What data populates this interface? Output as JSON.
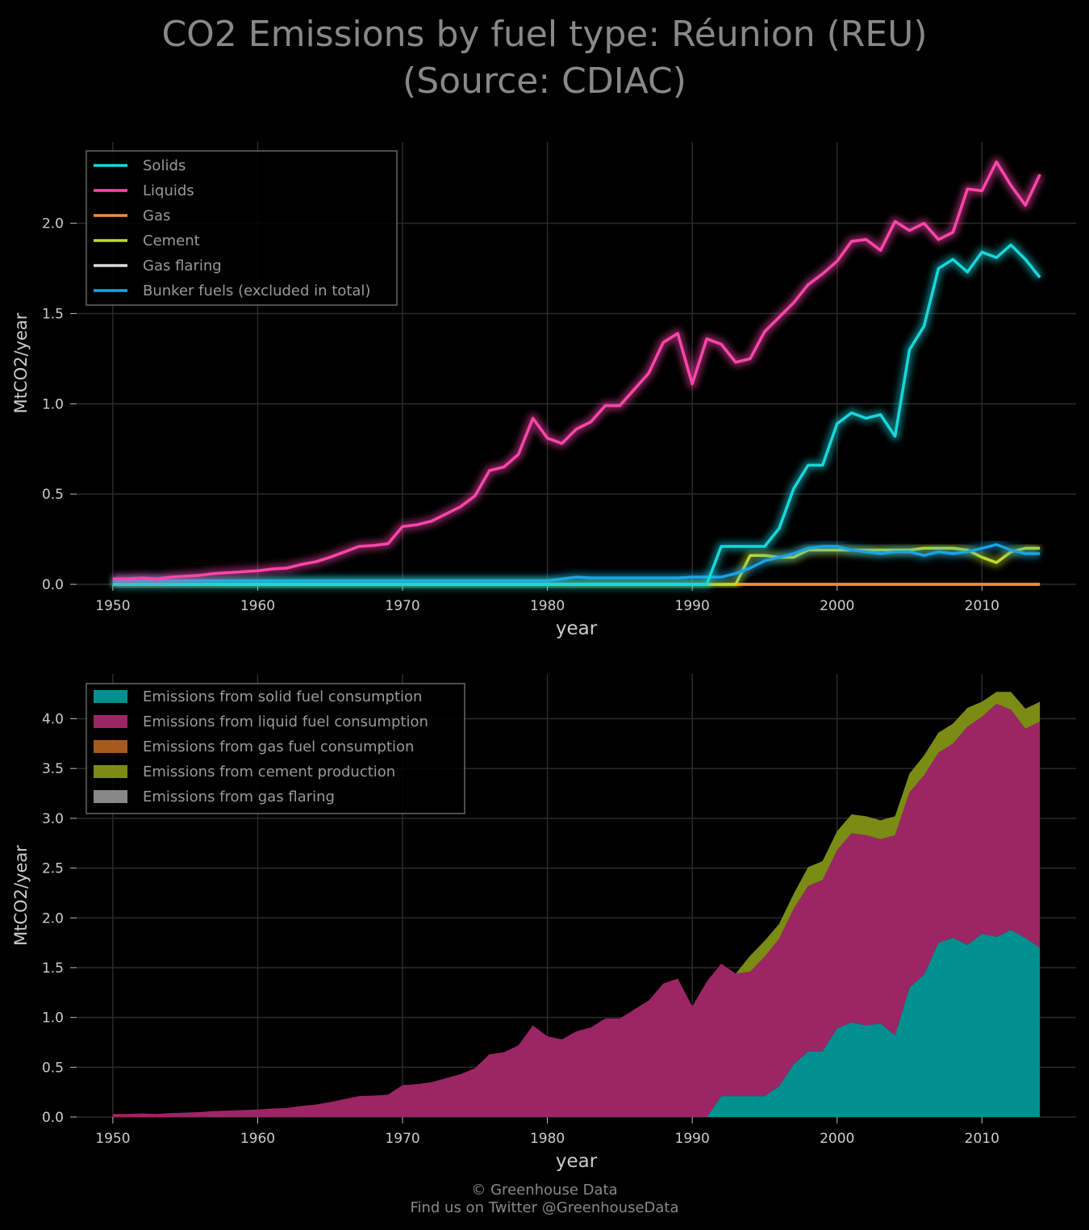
{
  "title_line1": "CO2 Emissions by fuel type: Réunion (REU)",
  "title_line2": "(Source: CDIAC)",
  "footer_line1": "© Greenhouse Data",
  "footer_line2": "Find us on Twitter @GreenhouseData",
  "colors": {
    "background": "#000000",
    "grid": "#2a2a2a",
    "text": "#cccccc",
    "solids": "#17d8dd",
    "liquids": "#ff44aa",
    "gas": "#f08a3c",
    "cement": "#c2d92a",
    "gas_flaring": "#dddddd",
    "bunker": "#1aa3e6",
    "area_solid": "#00908f",
    "area_liquid": "#9c2565",
    "area_gas": "#a85a1c",
    "area_cement": "#7a8c13",
    "area_flaring": "#888888"
  },
  "chart_data": [
    {
      "type": "line",
      "xlabel": "year",
      "ylabel": "MtCO2/year",
      "xlim": [
        1947.5,
        2016.5
      ],
      "ylim": [
        0,
        2.45
      ],
      "xticks": [
        1950,
        1960,
        1970,
        1980,
        1990,
        2000,
        2010
      ],
      "yticks": [
        0.0,
        0.5,
        1.0,
        1.5,
        2.0
      ],
      "ytick_labels": [
        "0.0",
        "0.5",
        "1.0",
        "1.5",
        "2.0"
      ],
      "grid": true,
      "legend_position": "top-left",
      "x": [
        1950,
        1951,
        1952,
        1953,
        1954,
        1955,
        1956,
        1957,
        1958,
        1959,
        1960,
        1961,
        1962,
        1963,
        1964,
        1965,
        1966,
        1967,
        1968,
        1969,
        1970,
        1971,
        1972,
        1973,
        1974,
        1975,
        1976,
        1977,
        1978,
        1979,
        1980,
        1981,
        1982,
        1983,
        1984,
        1985,
        1986,
        1987,
        1988,
        1989,
        1990,
        1991,
        1992,
        1993,
        1994,
        1995,
        1996,
        1997,
        1998,
        1999,
        2000,
        2001,
        2002,
        2003,
        2004,
        2005,
        2006,
        2007,
        2008,
        2009,
        2010,
        2011,
        2012,
        2013,
        2014
      ],
      "series": [
        {
          "name": "Solids",
          "color_key": "solids",
          "values": [
            0,
            0,
            0,
            0,
            0,
            0,
            0,
            0,
            0,
            0,
            0,
            0,
            0,
            0,
            0,
            0,
            0,
            0,
            0,
            0,
            0,
            0,
            0,
            0,
            0,
            0,
            0,
            0,
            0,
            0,
            0,
            0,
            0,
            0,
            0,
            0,
            0,
            0,
            0,
            0,
            0,
            0,
            0.21,
            0.21,
            0.21,
            0.21,
            0.31,
            0.53,
            0.66,
            0.66,
            0.89,
            0.95,
            0.92,
            0.94,
            0.82,
            1.3,
            1.43,
            1.75,
            1.8,
            1.73,
            1.84,
            1.81,
            1.88,
            1.8,
            1.7
          ]
        },
        {
          "name": "Liquids",
          "color_key": "liquids",
          "values": [
            0.03,
            0.03,
            0.035,
            0.03,
            0.04,
            0.045,
            0.05,
            0.06,
            0.065,
            0.07,
            0.075,
            0.085,
            0.09,
            0.11,
            0.125,
            0.15,
            0.18,
            0.21,
            0.215,
            0.225,
            0.32,
            0.33,
            0.35,
            0.39,
            0.43,
            0.49,
            0.63,
            0.65,
            0.72,
            0.92,
            0.81,
            0.78,
            0.86,
            0.9,
            0.99,
            0.99,
            1.08,
            1.17,
            1.34,
            1.39,
            1.11,
            1.36,
            1.33,
            1.23,
            1.25,
            1.4,
            1.48,
            1.56,
            1.66,
            1.72,
            1.79,
            1.9,
            1.91,
            1.85,
            2.01,
            1.96,
            2.0,
            1.91,
            1.95,
            2.19,
            2.18,
            2.34,
            2.21,
            2.1,
            2.27
          ]
        },
        {
          "name": "Gas",
          "color_key": "gas",
          "values": [
            0,
            0,
            0,
            0,
            0,
            0,
            0,
            0,
            0,
            0,
            0,
            0,
            0,
            0,
            0,
            0,
            0,
            0,
            0,
            0,
            0,
            0,
            0,
            0,
            0,
            0,
            0,
            0,
            0,
            0,
            0,
            0,
            0,
            0,
            0,
            0,
            0,
            0,
            0,
            0,
            0,
            0,
            0,
            0,
            0,
            0,
            0,
            0,
            0,
            0,
            0,
            0,
            0,
            0,
            0,
            0,
            0,
            0,
            0,
            0,
            0,
            0,
            0,
            0,
            0
          ]
        },
        {
          "name": "Cement",
          "color_key": "cement",
          "values": [
            0,
            0,
            0,
            0,
            0,
            0,
            0,
            0,
            0,
            0,
            0,
            0,
            0,
            0,
            0,
            0,
            0,
            0,
            0,
            0,
            0,
            0,
            0,
            0,
            0,
            0,
            0,
            0,
            0,
            0,
            0,
            0,
            0,
            0,
            0,
            0,
            0,
            0,
            0,
            0,
            0,
            0,
            0,
            0,
            0.16,
            0.16,
            0.15,
            0.15,
            0.19,
            0.19,
            0.19,
            0.19,
            0.19,
            0.19,
            0.19,
            0.19,
            0.2,
            0.2,
            0.2,
            0.19,
            0.15,
            0.12,
            0.18,
            0.2,
            0.2
          ]
        },
        {
          "name": "Gas flaring",
          "color_key": "gas_flaring",
          "values": [
            0,
            0,
            0,
            0,
            0,
            0,
            0,
            0,
            0,
            0,
            0,
            0,
            0,
            0,
            0,
            0,
            0,
            0,
            0,
            0,
            0,
            0,
            0,
            0,
            0,
            0,
            0,
            0,
            0,
            0,
            0,
            0,
            0,
            0,
            0,
            0,
            0,
            0,
            0,
            0,
            0,
            0,
            0,
            0,
            0,
            0,
            0,
            0,
            0,
            0,
            0,
            0,
            0,
            0,
            0,
            0,
            0,
            0,
            0,
            0,
            0,
            0,
            0,
            0,
            0
          ]
        },
        {
          "name": "Bunker fuels (excluded in total)",
          "color_key": "bunker",
          "values": [
            0.02,
            0.02,
            0.02,
            0.02,
            0.02,
            0.02,
            0.02,
            0.02,
            0.02,
            0.02,
            0.02,
            0.02,
            0.02,
            0.02,
            0.02,
            0.02,
            0.02,
            0.02,
            0.02,
            0.02,
            0.02,
            0.02,
            0.02,
            0.02,
            0.02,
            0.02,
            0.02,
            0.02,
            0.02,
            0.02,
            0.02,
            0.03,
            0.04,
            0.035,
            0.035,
            0.035,
            0.035,
            0.035,
            0.035,
            0.035,
            0.04,
            0.04,
            0.04,
            0.06,
            0.09,
            0.13,
            0.15,
            0.17,
            0.2,
            0.21,
            0.21,
            0.19,
            0.18,
            0.17,
            0.18,
            0.18,
            0.16,
            0.18,
            0.17,
            0.18,
            0.2,
            0.22,
            0.19,
            0.17,
            0.17
          ]
        }
      ]
    },
    {
      "type": "area",
      "stacked": true,
      "xlabel": "year",
      "ylabel": "MtCO2/year",
      "xlim": [
        1947.5,
        2016.5
      ],
      "ylim": [
        0,
        4.45
      ],
      "xticks": [
        1950,
        1960,
        1970,
        1980,
        1990,
        2000,
        2010
      ],
      "yticks": [
        0.0,
        0.5,
        1.0,
        1.5,
        2.0,
        2.5,
        3.0,
        3.5,
        4.0
      ],
      "ytick_labels": [
        "0.0",
        "0.5",
        "1.0",
        "1.5",
        "2.0",
        "2.5",
        "3.0",
        "3.5",
        "4.0"
      ],
      "grid": true,
      "legend_position": "top-left",
      "series_ref": "x and values shared with chart 1 (Solids, Liquids, Gas, Cement, Gas flaring)",
      "series": [
        {
          "name": "Emissions from solid fuel consumption",
          "color_key": "area_solid",
          "source": "Solids"
        },
        {
          "name": "Emissions from liquid fuel consumption",
          "color_key": "area_liquid",
          "source": "Liquids"
        },
        {
          "name": "Emissions from gas fuel consumption",
          "color_key": "area_gas",
          "source": "Gas"
        },
        {
          "name": "Emissions from cement production",
          "color_key": "area_cement",
          "source": "Cement"
        },
        {
          "name": "Emissions from gas flaring",
          "color_key": "area_flaring",
          "source": "Gas flaring"
        }
      ]
    }
  ]
}
